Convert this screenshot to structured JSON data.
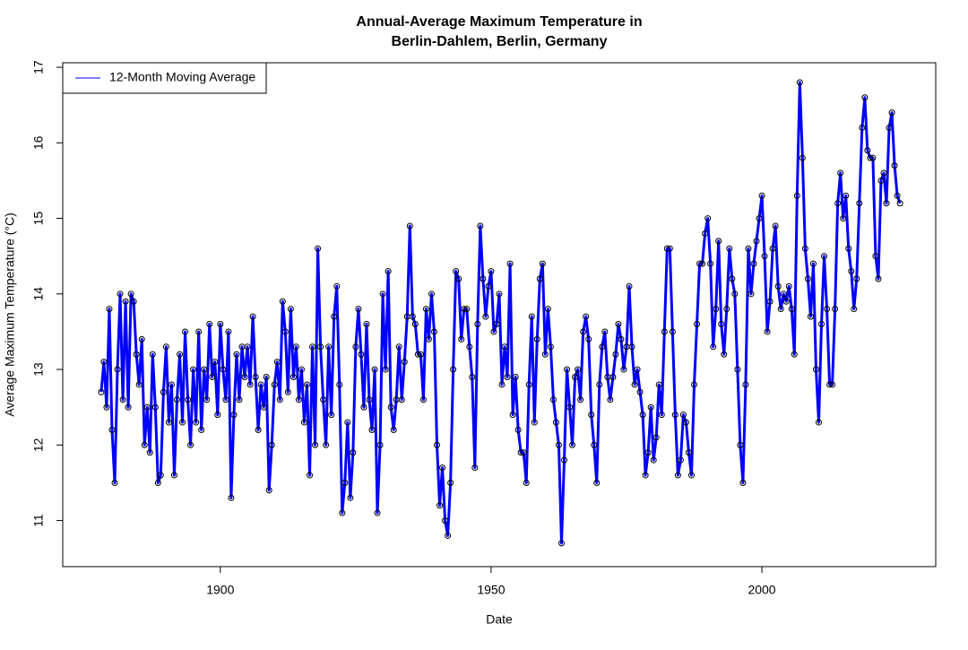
{
  "chart_data": {
    "type": "line",
    "title": "Annual-Average Maximum Temperature in",
    "subtitle": "Berlin-Dahlem, Berlin, Germany",
    "x_label": "Date",
    "y_label": "Average Maximum Temperature (°C)",
    "legend": "topleft",
    "marker_color": "#000000",
    "xlim": [
      1870.9,
      2032.1
    ],
    "ylim": [
      10.39,
      17.06
    ],
    "xticks": [
      1900,
      1950,
      2000
    ],
    "yticks": [
      11,
      12,
      13,
      14,
      15,
      16,
      17
    ],
    "x": [
      1878,
      1878.5,
      1879,
      1879.5,
      1880,
      1880.5,
      1881,
      1881.5,
      1882,
      1882.5,
      1883,
      1883.5,
      1884,
      1884.5,
      1885,
      1885.5,
      1886,
      1886.5,
      1887,
      1887.5,
      1888,
      1888.5,
      1889,
      1889.5,
      1890,
      1890.5,
      1891,
      1891.5,
      1892,
      1892.5,
      1893,
      1893.5,
      1894,
      1894.5,
      1895,
      1895.5,
      1896,
      1896.5,
      1897,
      1897.5,
      1898,
      1898.5,
      1899,
      1899.5,
      1900,
      1900.5,
      1901,
      1901.5,
      1902,
      1902.5,
      1903,
      1903.5,
      1904,
      1904.5,
      1905,
      1905.5,
      1906,
      1906.5,
      1907,
      1907.5,
      1908,
      1908.5,
      1909,
      1909.5,
      1910,
      1910.5,
      1911,
      1911.5,
      1912,
      1912.5,
      1913,
      1913.5,
      1914,
      1914.5,
      1915,
      1915.5,
      1916,
      1916.5,
      1917,
      1917.5,
      1918,
      1918.5,
      1919,
      1919.5,
      1920,
      1920.5,
      1921,
      1921.5,
      1922,
      1922.5,
      1923,
      1923.5,
      1924,
      1924.5,
      1925,
      1925.5,
      1926,
      1926.5,
      1927,
      1927.5,
      1928,
      1928.5,
      1929,
      1929.5,
      1930,
      1930.5,
      1931,
      1931.5,
      1932,
      1932.5,
      1933,
      1933.5,
      1934,
      1934.5,
      1935,
      1935.5,
      1936,
      1936.5,
      1937,
      1937.5,
      1938,
      1938.5,
      1939,
      1939.5,
      1940,
      1940.5,
      1941,
      1941.5,
      1942,
      1942.5,
      1943,
      1943.5,
      1944,
      1944.5,
      1945,
      1945.5,
      1946,
      1946.5,
      1947,
      1947.5,
      1948,
      1948.5,
      1949,
      1949.5,
      1950,
      1950.5,
      1951,
      1951.5,
      1952,
      1952.5,
      1953,
      1953.5,
      1954,
      1954.5,
      1955,
      1955.5,
      1956,
      1956.5,
      1957,
      1957.5,
      1958,
      1958.5,
      1959,
      1959.5,
      1960,
      1960.5,
      1961,
      1961.5,
      1962,
      1962.5,
      1963,
      1963.5,
      1964,
      1964.5,
      1965,
      1965.5,
      1966,
      1966.5,
      1967,
      1967.5,
      1968,
      1968.5,
      1969,
      1969.5,
      1970,
      1970.5,
      1971,
      1971.5,
      1972,
      1972.5,
      1973,
      1973.5,
      1974,
      1974.5,
      1975,
      1975.5,
      1976,
      1976.5,
      1977,
      1977.5,
      1978,
      1978.5,
      1979,
      1979.5,
      1980,
      1980.5,
      1981,
      1981.5,
      1982,
      1982.5,
      1983,
      1983.5,
      1984,
      1984.5,
      1985,
      1985.5,
      1986,
      1986.5,
      1987,
      1987.5,
      1988,
      1988.5,
      1989,
      1989.5,
      1990,
      1990.5,
      1991,
      1991.5,
      1992,
      1992.5,
      1993,
      1993.5,
      1994,
      1994.5,
      1995,
      1995.5,
      1996,
      1996.5,
      1997,
      1997.5,
      1998,
      1998.5,
      1999,
      1999.5,
      2000,
      2000.5,
      2001,
      2001.5,
      2002,
      2002.5,
      2003,
      2003.5,
      2004,
      2004.5,
      2005,
      2005.5,
      2006,
      2006.5,
      2007,
      2007.5,
      2008,
      2008.5,
      2009,
      2009.5,
      2010,
      2010.5,
      2011,
      2011.5,
      2012,
      2012.5,
      2013,
      2013.5,
      2014,
      2014.5,
      2015,
      2015.5,
      2016,
      2016.5,
      2017,
      2017.5,
      2018,
      2018.5,
      2019,
      2019.5,
      2020,
      2020.5,
      2021,
      2021.5,
      2022,
      2022.5,
      2023,
      2023.5,
      2024,
      2024.5,
      2025,
      2025.5
    ],
    "series": [
      {
        "name": "12-Month Moving Average",
        "color": "#0000ff",
        "values": [
          12.7,
          13.1,
          12.5,
          13.8,
          12.2,
          11.5,
          13.0,
          14.0,
          12.6,
          13.9,
          12.5,
          14.0,
          13.9,
          13.2,
          12.8,
          13.4,
          12.0,
          12.5,
          11.9,
          13.2,
          12.5,
          11.5,
          11.6,
          12.7,
          13.3,
          12.3,
          12.8,
          11.6,
          12.6,
          13.2,
          12.3,
          13.5,
          12.6,
          12.0,
          13.0,
          12.3,
          13.5,
          12.2,
          13.0,
          12.6,
          13.6,
          12.9,
          13.1,
          12.4,
          13.6,
          13.0,
          12.6,
          13.5,
          11.3,
          12.4,
          13.2,
          12.6,
          13.3,
          12.9,
          13.3,
          12.8,
          13.7,
          12.9,
          12.2,
          12.8,
          12.5,
          12.9,
          11.4,
          12.0,
          12.8,
          13.1,
          12.6,
          13.9,
          13.5,
          12.7,
          13.8,
          12.9,
          13.3,
          12.6,
          13.0,
          12.3,
          12.8,
          11.6,
          13.3,
          12.0,
          14.6,
          13.3,
          12.6,
          12.0,
          13.3,
          12.4,
          13.7,
          14.1,
          12.8,
          11.1,
          11.5,
          12.3,
          11.3,
          11.9,
          13.3,
          13.8,
          13.2,
          12.5,
          13.6,
          12.6,
          12.2,
          13.0,
          11.1,
          12.0,
          14.0,
          13.0,
          14.3,
          12.5,
          12.2,
          12.6,
          13.3,
          12.6,
          13.1,
          13.7,
          14.9,
          13.7,
          13.6,
          13.2,
          13.2,
          12.6,
          13.8,
          13.4,
          14.0,
          13.5,
          12.0,
          11.2,
          11.7,
          11.0,
          10.8,
          11.5,
          13.0,
          14.3,
          14.2,
          13.4,
          13.8,
          13.8,
          13.3,
          12.9,
          11.7,
          13.6,
          14.9,
          14.2,
          13.7,
          14.1,
          14.3,
          13.5,
          13.6,
          14.0,
          12.8,
          13.3,
          12.9,
          14.4,
          12.4,
          12.9,
          12.2,
          11.9,
          11.9,
          11.5,
          12.8,
          13.7,
          12.3,
          13.4,
          14.2,
          14.4,
          13.2,
          13.8,
          13.3,
          12.6,
          12.3,
          12.0,
          10.7,
          11.8,
          13.0,
          12.5,
          12.0,
          12.9,
          13.0,
          12.6,
          13.5,
          13.7,
          13.4,
          12.4,
          12.0,
          11.5,
          12.8,
          13.3,
          13.5,
          12.9,
          12.6,
          12.9,
          13.2,
          13.6,
          13.4,
          13.0,
          13.3,
          14.1,
          13.3,
          12.8,
          13.0,
          12.7,
          12.4,
          11.6,
          11.9,
          12.5,
          11.8,
          12.1,
          12.8,
          12.4,
          13.5,
          14.6,
          14.6,
          13.5,
          12.4,
          11.6,
          11.8,
          12.4,
          12.3,
          11.9,
          11.6,
          12.8,
          13.6,
          14.4,
          14.4,
          14.8,
          15.0,
          14.4,
          13.3,
          13.8,
          14.7,
          13.6,
          13.2,
          13.8,
          14.6,
          14.2,
          14.0,
          13.0,
          12.0,
          11.5,
          12.8,
          14.6,
          14.0,
          14.4,
          14.7,
          15.0,
          15.3,
          14.5,
          13.5,
          13.9,
          14.6,
          14.9,
          14.1,
          13.8,
          14.0,
          13.9,
          14.1,
          13.8,
          13.2,
          15.3,
          16.8,
          15.8,
          14.6,
          14.2,
          13.7,
          14.4,
          13.0,
          12.3,
          13.6,
          14.5,
          13.8,
          12.8,
          12.8,
          13.8,
          15.2,
          15.6,
          15.0,
          15.3,
          14.6,
          14.3,
          13.8,
          14.2,
          15.2,
          16.2,
          16.6,
          15.9,
          15.8,
          15.8,
          14.5,
          14.2,
          15.5,
          15.6,
          15.2,
          16.2,
          16.4,
          15.7,
          15.3,
          15.2
        ]
      }
    ]
  }
}
